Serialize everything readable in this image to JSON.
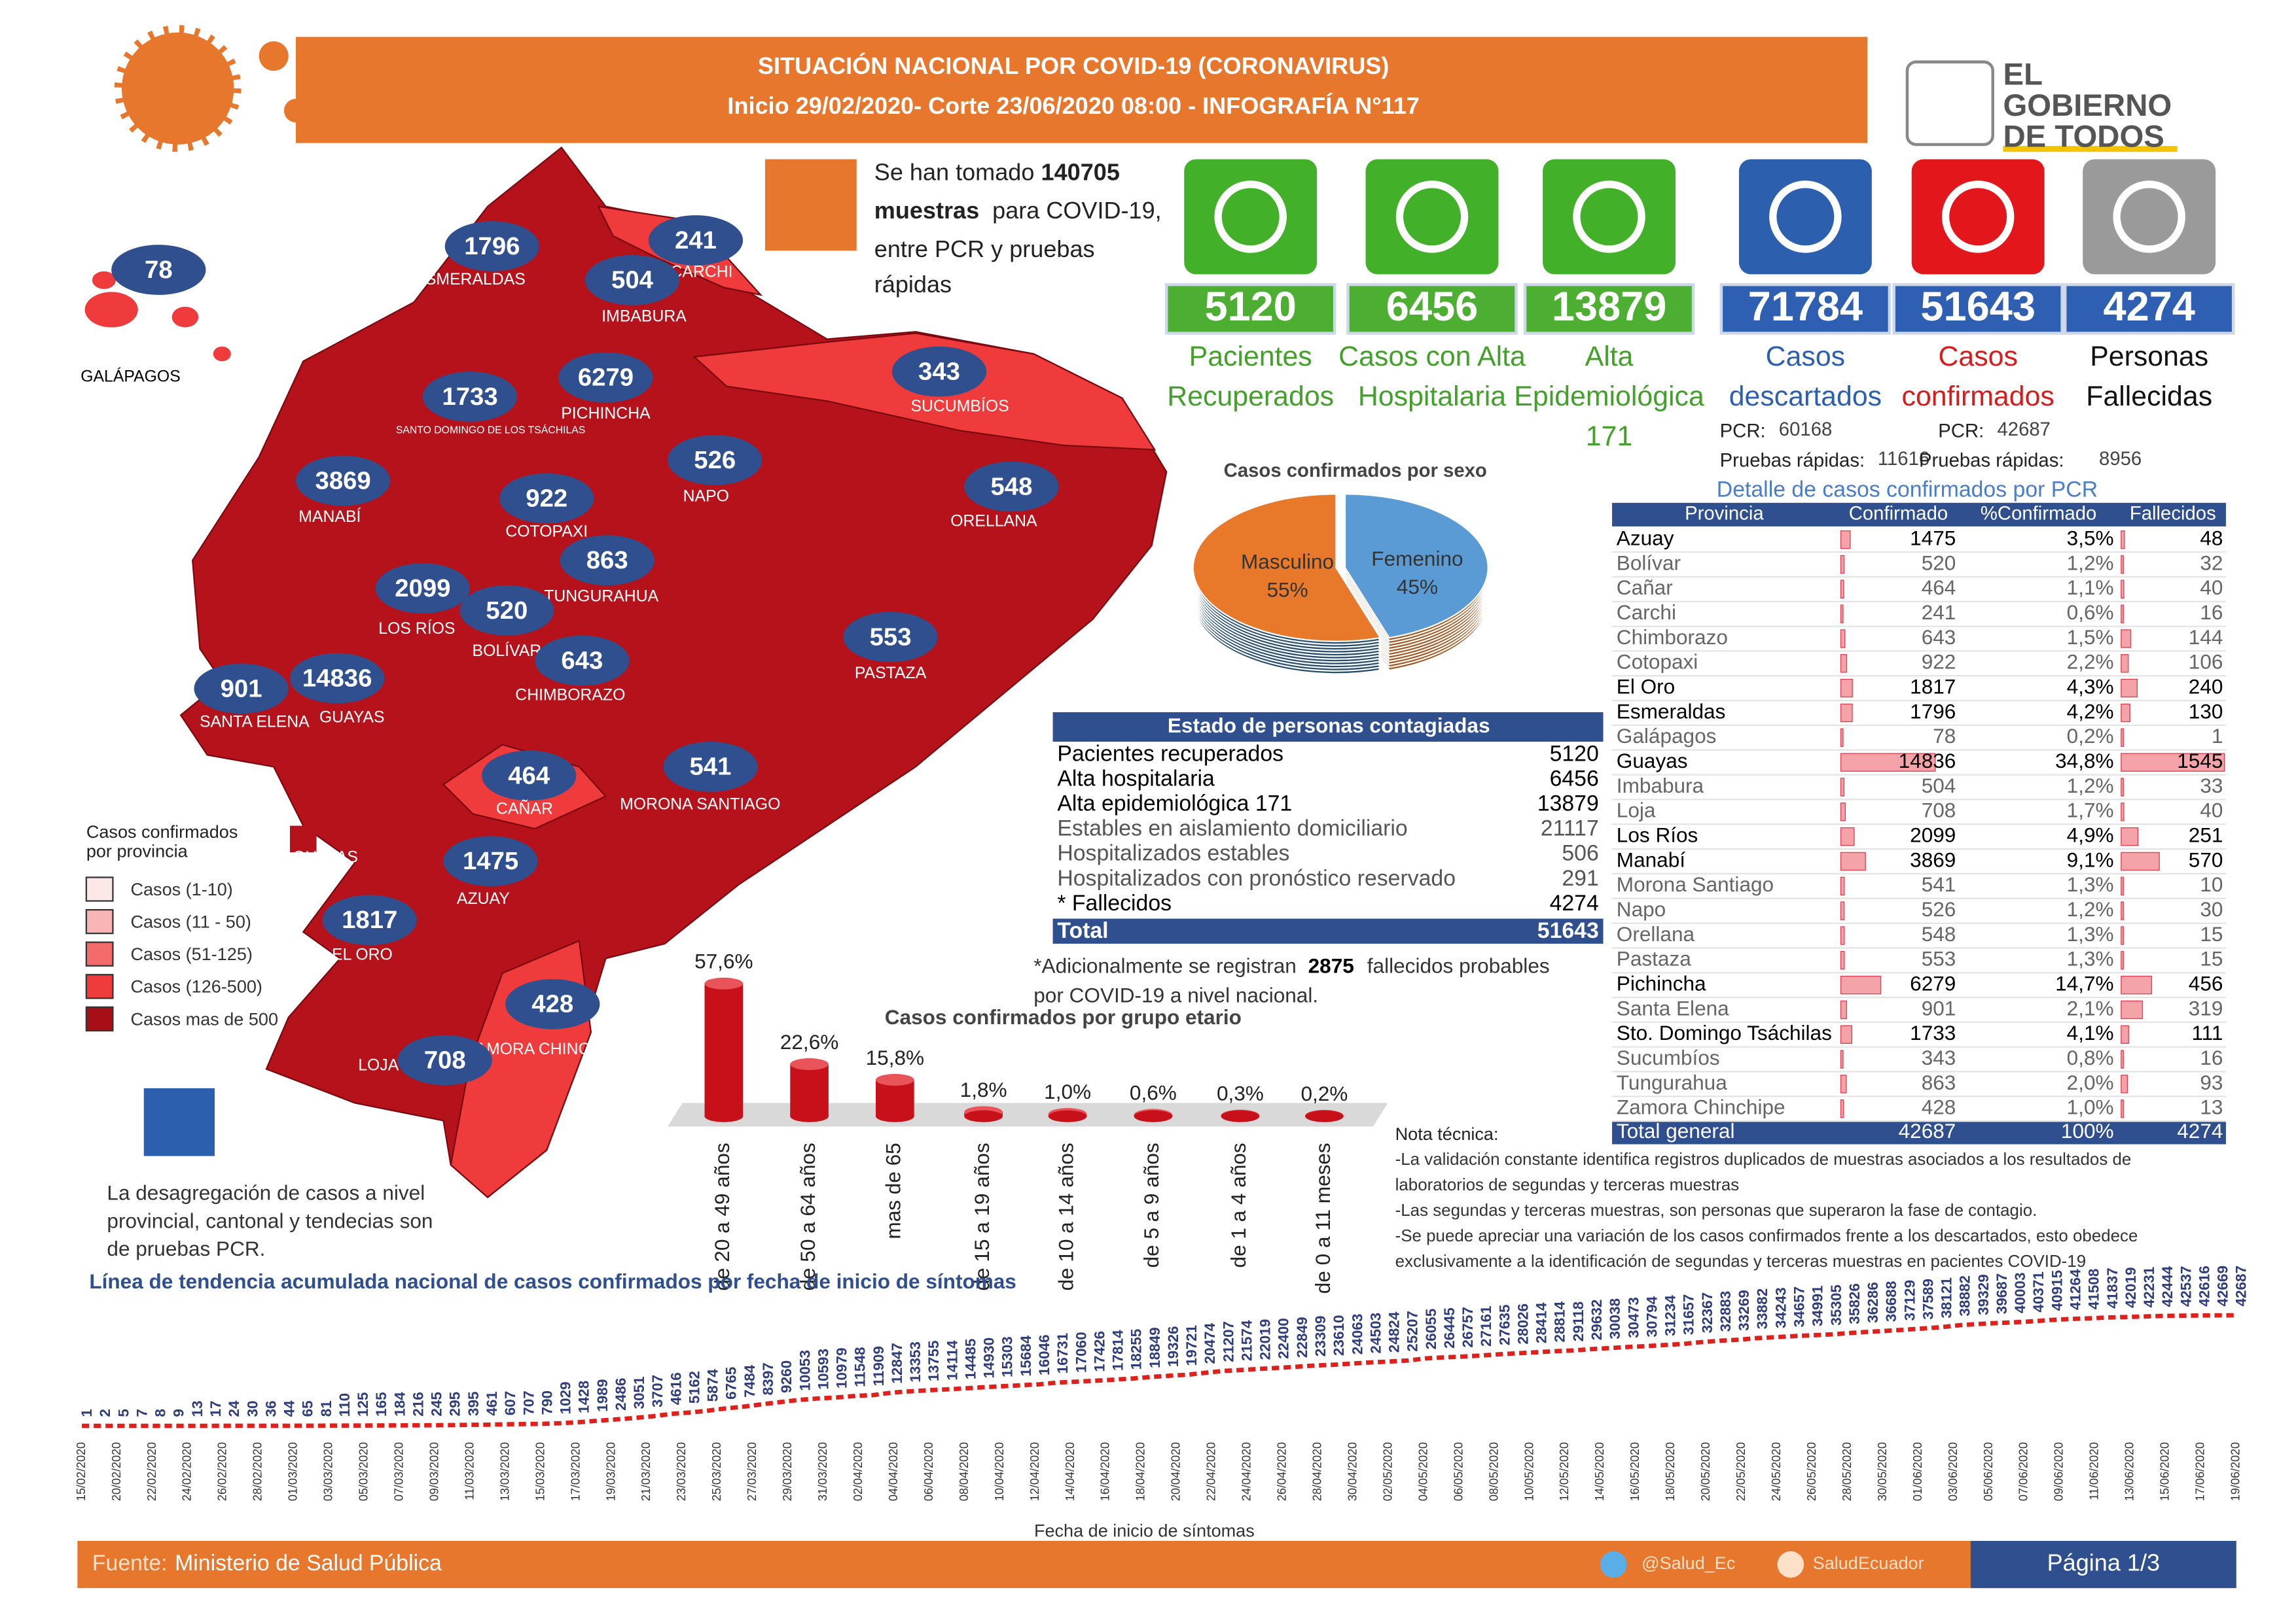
{
  "header": {
    "title": "SITUACIÓN NACIONAL POR  COVID-19 (CORONAVIRUS)",
    "subtitle": "Inicio 29/02/2020- Corte 23/06/2020 08:00  - INFOGRAFÍA N°117"
  },
  "logo": {
    "lines": [
      "EL",
      "GOBIERNO",
      "DE TODOS"
    ]
  },
  "samples": {
    "lines": [
      "Se han tomado",
      "140705",
      "muestras",
      "para COVID-19,",
      "entre PCR y pruebas",
      "rápidas"
    ]
  },
  "stats": [
    {
      "value": 5120,
      "label": [
        "Pacientes",
        "Recuperados"
      ],
      "icon_color": "#43b02a",
      "box_color": "#4caf32",
      "label_color": "#43a02a"
    },
    {
      "value": 6456,
      "label": [
        "Casos con Alta",
        "Hospitalaria"
      ],
      "icon_color": "#43b02a",
      "box_color": "#4caf32",
      "label_color": "#43a02a"
    },
    {
      "value": 13879,
      "label": [
        "Alta",
        "Epidemiológica",
        "171"
      ],
      "icon_color": "#43b02a",
      "box_color": "#4caf32",
      "label_color": "#43a02a"
    },
    {
      "value": 71784,
      "label": [
        "Casos",
        "descartados"
      ],
      "icon_color": "#2d5faf",
      "box_color": "#2f5fb3",
      "label_color": "#2d5faf"
    },
    {
      "value": 51643,
      "label": [
        "Casos",
        "confirmados"
      ],
      "icon_color": "#e3161c",
      "box_color": "#2f5fb3",
      "label_color": "#d81b1b"
    },
    {
      "value": 4274,
      "label": [
        "Personas",
        "Fallecidas"
      ],
      "icon_color": "#9a9a9a",
      "box_color": "#2f5fb3",
      "label_color": "#111111"
    }
  ],
  "tests_detail": [
    {
      "pcr_label": "PCR:",
      "pcr": 60168,
      "rapid_label": "Pruebas rápidas:",
      "rapid": 11616
    },
    {
      "pcr_label": "PCR:",
      "pcr": 42687,
      "rapid_label": "Pruebas rápidas:",
      "rapid": 8956
    }
  ],
  "map": {
    "provinces": [
      {
        "name": "GALÁPAGOS",
        "value": 78
      },
      {
        "name": "ESMERALDAS",
        "value": 1796
      },
      {
        "name": "CARCHI",
        "value": 241
      },
      {
        "name": "IMBABURA",
        "value": 504
      },
      {
        "name": "SUCUMBÍOS",
        "value": 343
      },
      {
        "name": "SANTO DOMINGO DE LOS TSÁCHILAS",
        "value": 1733
      },
      {
        "name": "PICHINCHA",
        "value": 6279
      },
      {
        "name": "NAPO",
        "value": 526
      },
      {
        "name": "ORELLANA",
        "value": 548
      },
      {
        "name": "MANABÍ",
        "value": 3869
      },
      {
        "name": "COTOPAXI",
        "value": 922
      },
      {
        "name": "TUNGURAHUA",
        "value": 863
      },
      {
        "name": "LOS RÍOS",
        "value": 2099
      },
      {
        "name": "BOLÍVAR",
        "value": 520
      },
      {
        "name": "CHIMBORAZO",
        "value": 643
      },
      {
        "name": "PASTAZA",
        "value": 553
      },
      {
        "name": "SANTA ELENA",
        "value": 901
      },
      {
        "name": "GUAYAS",
        "value": 14836
      },
      {
        "name": "CAÑAR",
        "value": 464
      },
      {
        "name": "MORONA SANTIAGO",
        "value": 541
      },
      {
        "name": "AZUAY",
        "value": 1475
      },
      {
        "name": "EL ORO",
        "value": 1817
      },
      {
        "name": "ZAMORA CHINCHIPE",
        "value": 428
      },
      {
        "name": "LOJA",
        "value": 708
      }
    ],
    "extra_label": "GUAYAS",
    "legend": {
      "title": [
        "Casos confirmados",
        "por provincia"
      ],
      "items": [
        {
          "label": "Casos (1-10)",
          "color": "#fde8e8"
        },
        {
          "label": "Casos (11 - 50)",
          "color": "#f9b4b4"
        },
        {
          "label": "Casos (51-125)",
          "color": "#f46b6b"
        },
        {
          "label": "Casos (126-500)",
          "color": "#ef3b3b"
        },
        {
          "label": "Casos mas de 500",
          "color": "#a50f15"
        }
      ]
    }
  },
  "chart_data": [
    {
      "type": "pie",
      "title": "Casos confirmados por sexo",
      "categories": [
        "Masculino",
        "Femenino"
      ],
      "values": [
        55,
        45
      ],
      "value_labels": [
        "55%",
        "45%"
      ],
      "colors": [
        "#e8792b",
        "#5b9bd5"
      ]
    },
    {
      "type": "bar",
      "title": "Casos confirmados por grupo etario",
      "categories": [
        "de 20 a 49 años",
        "de 50 a 64 años",
        "mas de 65",
        "de 15 a 19 años",
        "de 10 a 14 años",
        "de 5 a 9 años",
        "de 1 a 4 años",
        "de 0 a 11 meses"
      ],
      "values": [
        57.6,
        22.6,
        15.8,
        1.8,
        1.0,
        0.6,
        0.3,
        0.2
      ],
      "value_labels": [
        "57,6%",
        "22,6%",
        "15,8%",
        "1,8%",
        "1,0%",
        "0,6%",
        "0,3%",
        "0,2%"
      ],
      "color": "#c8101a"
    },
    {
      "type": "line",
      "title": "Línea de tendencia acumulada nacional de casos confirmados por fecha de inicio de síntomas",
      "x_label": "Fecha de inicio de síntomas",
      "color": "#e0201b",
      "values": [
        1,
        2,
        5,
        7,
        8,
        9,
        13,
        17,
        24,
        30,
        36,
        44,
        65,
        81,
        110,
        125,
        165,
        184,
        216,
        245,
        295,
        395,
        461,
        607,
        707,
        790,
        1029,
        1428,
        1989,
        2486,
        3051,
        3707,
        4616,
        5162,
        5874,
        6765,
        7484,
        8397,
        9260,
        10053,
        10593,
        10979,
        11548,
        11909,
        12847,
        13353,
        13755,
        14114,
        14485,
        14930,
        15303,
        15684,
        16046,
        16731,
        17060,
        17426,
        17814,
        18255,
        18849,
        19326,
        19721,
        20474,
        21207,
        21574,
        22019,
        22400,
        22849,
        23309,
        23610,
        24063,
        24503,
        24824,
        25207,
        26055,
        26445,
        26757,
        27161,
        27635,
        28026,
        28414,
        28814,
        29118,
        29632,
        30038,
        30473,
        30794,
        31234,
        31657,
        32367,
        32883,
        33269,
        33882,
        34243,
        34657,
        34991,
        35305,
        35826,
        36286,
        36688,
        37129,
        37589,
        38121,
        38882,
        39329,
        39687,
        40003,
        40371,
        40915,
        41264,
        41508,
        41837,
        42019,
        42231,
        42444,
        42537,
        42616,
        42669,
        42687
      ],
      "date_labels": [
        "15/02/2020",
        "20/02/2020",
        "22/02/2020",
        "24/02/2020",
        "26/02/2020",
        "28/02/2020",
        "01/03/2020",
        "03/03/2020",
        "05/03/2020",
        "07/03/2020",
        "09/03/2020",
        "11/03/2020",
        "13/03/2020",
        "15/03/2020",
        "17/03/2020",
        "19/03/2020",
        "21/03/2020",
        "23/03/2020",
        "25/03/2020",
        "27/03/2020",
        "29/03/2020",
        "31/03/2020",
        "02/04/2020",
        "04/04/2020",
        "06/04/2020",
        "08/04/2020",
        "10/04/2020",
        "12/04/2020",
        "14/04/2020",
        "16/04/2020",
        "18/04/2020",
        "20/04/2020",
        "22/04/2020",
        "24/04/2020",
        "26/04/2020",
        "28/04/2020",
        "30/04/2020",
        "02/05/2020",
        "04/05/2020",
        "06/05/2020",
        "08/05/2020",
        "10/05/2020",
        "12/05/2020",
        "14/05/2020",
        "16/05/2020",
        "18/05/2020",
        "20/05/2020",
        "22/05/2020",
        "24/05/2020",
        "26/05/2020",
        "28/05/2020",
        "30/05/2020",
        "01/06/2020",
        "03/06/2020",
        "05/06/2020",
        "07/06/2020",
        "09/06/2020",
        "11/06/2020",
        "13/06/2020",
        "15/06/2020",
        "17/06/2020",
        "19/06/2020"
      ]
    }
  ],
  "status_table": {
    "title": "Estado de personas contagiadas",
    "rows": [
      [
        "Pacientes recuperados",
        5120
      ],
      [
        "Alta hospitalaria",
        6456
      ],
      [
        "Alta epidemiológica 171",
        13879
      ],
      [
        "Estables en aislamiento domiciliario",
        21117
      ],
      [
        "Hospitalizados estables",
        506
      ],
      [
        "Hospitalizados con pronóstico reservado",
        291
      ],
      [
        "* Fallecidos",
        4274
      ]
    ],
    "total": [
      "Total",
      51643
    ]
  },
  "probable_note": {
    "prefix": "*Adicionalmente se registran",
    "value": 2875,
    "suffix": [
      "fallecidos probables",
      "por COVID-19 a nivel nacional."
    ]
  },
  "province_table": {
    "title": "Detalle de casos confirmados por PCR",
    "columns": [
      "Provincia",
      "Confirmado",
      "%Confirmado",
      "Fallecidos"
    ],
    "rows": [
      {
        "name": "Azuay",
        "confirmed": 1475,
        "pct": 3.5,
        "pct_label": "3,5%",
        "deaths": 48
      },
      {
        "name": "Bolívar",
        "confirmed": 520,
        "pct": 1.2,
        "pct_label": "1,2%",
        "deaths": 32
      },
      {
        "name": "Cañar",
        "confirmed": 464,
        "pct": 1.1,
        "pct_label": "1,1%",
        "deaths": 40
      },
      {
        "name": "Carchi",
        "confirmed": 241,
        "pct": 0.6,
        "pct_label": "0,6%",
        "deaths": 16
      },
      {
        "name": "Chimborazo",
        "confirmed": 643,
        "pct": 1.5,
        "pct_label": "1,5%",
        "deaths": 144
      },
      {
        "name": "Cotopaxi",
        "confirmed": 922,
        "pct": 2.2,
        "pct_label": "2,2%",
        "deaths": 106
      },
      {
        "name": "El Oro",
        "confirmed": 1817,
        "pct": 4.3,
        "pct_label": "4,3%",
        "deaths": 240
      },
      {
        "name": "Esmeraldas",
        "confirmed": 1796,
        "pct": 4.2,
        "pct_label": "4,2%",
        "deaths": 130
      },
      {
        "name": "Galápagos",
        "confirmed": 78,
        "pct": 0.2,
        "pct_label": "0,2%",
        "deaths": 1
      },
      {
        "name": "Guayas",
        "confirmed": 14836,
        "pct": 34.8,
        "pct_label": "34,8%",
        "deaths": 1545
      },
      {
        "name": "Imbabura",
        "confirmed": 504,
        "pct": 1.2,
        "pct_label": "1,2%",
        "deaths": 33
      },
      {
        "name": "Loja",
        "confirmed": 708,
        "pct": 1.7,
        "pct_label": "1,7%",
        "deaths": 40
      },
      {
        "name": "Los Ríos",
        "confirmed": 2099,
        "pct": 4.9,
        "pct_label": "4,9%",
        "deaths": 251
      },
      {
        "name": "Manabí",
        "confirmed": 3869,
        "pct": 9.1,
        "pct_label": "9,1%",
        "deaths": 570
      },
      {
        "name": "Morona Santiago",
        "confirmed": 541,
        "pct": 1.3,
        "pct_label": "1,3%",
        "deaths": 10
      },
      {
        "name": "Napo",
        "confirmed": 526,
        "pct": 1.2,
        "pct_label": "1,2%",
        "deaths": 30
      },
      {
        "name": "Orellana",
        "confirmed": 548,
        "pct": 1.3,
        "pct_label": "1,3%",
        "deaths": 15
      },
      {
        "name": "Pastaza",
        "confirmed": 553,
        "pct": 1.3,
        "pct_label": "1,3%",
        "deaths": 15
      },
      {
        "name": "Pichincha",
        "confirmed": 6279,
        "pct": 14.7,
        "pct_label": "14,7%",
        "deaths": 456
      },
      {
        "name": "Santa Elena",
        "confirmed": 901,
        "pct": 2.1,
        "pct_label": "2,1%",
        "deaths": 319
      },
      {
        "name": "Sto. Domingo Tsáchilas",
        "confirmed": 1733,
        "pct": 4.1,
        "pct_label": "4,1%",
        "deaths": 111
      },
      {
        "name": "Sucumbíos",
        "confirmed": 343,
        "pct": 0.8,
        "pct_label": "0,8%",
        "deaths": 16
      },
      {
        "name": "Tungurahua",
        "confirmed": 863,
        "pct": 2.0,
        "pct_label": "2,0%",
        "deaths": 93
      },
      {
        "name": "Zamora Chinchipe",
        "confirmed": 428,
        "pct": 1.0,
        "pct_label": "1,0%",
        "deaths": 13
      }
    ],
    "total": {
      "name": "Total general",
      "confirmed": 42687,
      "pct": 100,
      "pct_label": "100%",
      "deaths": 4274
    }
  },
  "tech_note": {
    "title": "Nota técnica:",
    "lines": [
      "-La validación constante identifica registros duplicados de muestras asociados a los resultados de",
      "laboratorios de segundas y terceras muestras",
      "-Las segundas y terceras muestras, son personas que superaron la fase de contagio.",
      "-Se puede apreciar una variación de los casos confirmados frente a los descartados, esto obedece",
      "exclusivamente a la identificación de segundas y terceras muestras en pacientes COVID-19"
    ]
  },
  "info": {
    "lines": [
      "La desagregación de casos a nivel",
      "provincial, cantonal y tendecias son",
      "de pruebas PCR."
    ]
  },
  "footer": {
    "source_label": "Fuente:",
    "source": "Ministerio de Salud Pública",
    "twitter": "@Salud_Ec",
    "facebook": "SaludEcuador",
    "page": "Página 1/3"
  }
}
